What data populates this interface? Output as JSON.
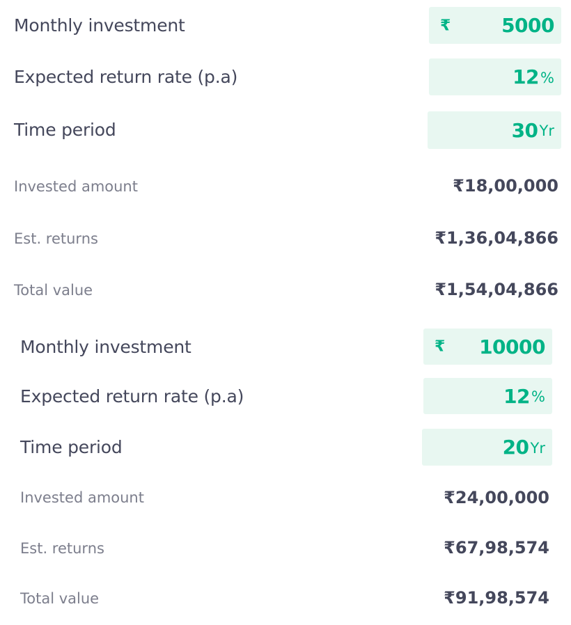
{
  "colors": {
    "accent": "#00b386",
    "input_bg": "#e8f7f1",
    "label_text": "#44475b",
    "sub_label_text": "#7c7e8c"
  },
  "calculators": [
    {
      "monthly_investment": {
        "label": "Monthly investment",
        "currency_icon": "rupee-icon",
        "currency_symbol": "₹",
        "value": "5000"
      },
      "return_rate": {
        "label": "Expected return rate (p.a)",
        "value": "12",
        "unit": "%"
      },
      "time_period": {
        "label": "Time period",
        "value": "30",
        "unit": "Yr"
      },
      "invested_amount": {
        "label": "Invested amount",
        "value": "₹18,00,000"
      },
      "est_returns": {
        "label": "Est. returns",
        "value": "₹1,36,04,866"
      },
      "total_value": {
        "label": "Total value",
        "value": "₹1,54,04,866"
      }
    },
    {
      "monthly_investment": {
        "label": "Monthly investment",
        "currency_icon": "rupee-icon",
        "currency_symbol": "₹",
        "value": "10000"
      },
      "return_rate": {
        "label": "Expected return rate (p.a)",
        "value": "12",
        "unit": "%"
      },
      "time_period": {
        "label": "Time period",
        "value": "20",
        "unit": "Yr"
      },
      "invested_amount": {
        "label": "Invested amount",
        "value": "₹24,00,000"
      },
      "est_returns": {
        "label": "Est. returns",
        "value": "₹67,98,574"
      },
      "total_value": {
        "label": "Total value",
        "value": "₹91,98,574"
      }
    }
  ]
}
